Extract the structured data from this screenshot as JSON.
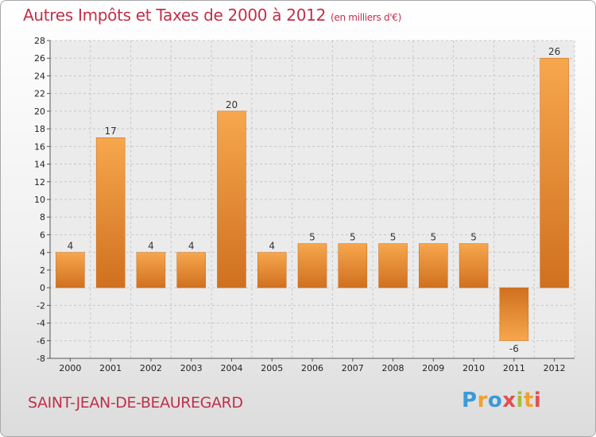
{
  "header": {
    "title": "Autres Impôts et Taxes de 2000 à 2012",
    "unit": "(en milliers d'€)"
  },
  "footer": {
    "commune": "SAINT-JEAN-DE-BEAUREGARD",
    "logo": {
      "letters": [
        "P",
        "r",
        "o",
        "x",
        "i",
        "t",
        "i"
      ],
      "colors": [
        "#3a9ad9",
        "#f0a030",
        "#3a9ad9",
        "#e05050",
        "#a0c040",
        "#f0a030",
        "#e05050"
      ]
    }
  },
  "colors": {
    "accent": "#c0304a",
    "bar_light": "#f7a74e",
    "bar_dark": "#d07020"
  },
  "chart_data": {
    "type": "bar",
    "categories": [
      "2000",
      "2001",
      "2002",
      "2003",
      "2004",
      "2005",
      "2006",
      "2007",
      "2008",
      "2009",
      "2010",
      "2011",
      "2012"
    ],
    "values": [
      4,
      17,
      4,
      4,
      20,
      4,
      5,
      5,
      5,
      5,
      5,
      -6,
      26
    ],
    "data_labels": [
      "4",
      "17",
      "4",
      "4",
      "20",
      "4",
      "5",
      "5",
      "5",
      "5",
      "5",
      "-6",
      "26"
    ],
    "ylim": [
      -8,
      28
    ],
    "yticks": [
      -8,
      -6,
      -4,
      -2,
      0,
      2,
      4,
      6,
      8,
      10,
      12,
      14,
      16,
      18,
      20,
      22,
      24,
      26,
      28
    ],
    "grid": true,
    "legend": "none"
  }
}
